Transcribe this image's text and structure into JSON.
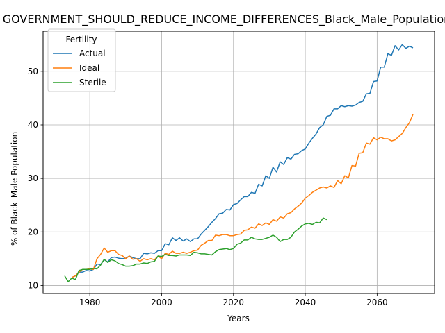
{
  "chart_data": {
    "type": "line",
    "title": "GOVERNMENT_SHOULD_REDUCE_INCOME_DIFFERENCES_Black_Male_Population_",
    "xlabel": "Years",
    "ylabel": "% of Black_Male Population",
    "xlim": [
      1967,
      2076
    ],
    "ylim": [
      8.5,
      57.5
    ],
    "xticks": [
      1980,
      2000,
      2020,
      2040,
      2060
    ],
    "yticks": [
      10,
      20,
      30,
      40,
      50
    ],
    "grid": true,
    "legend": {
      "title": "Fertility",
      "placement": "top-left"
    },
    "series": [
      {
        "name": "Actual",
        "color": "#1f77b4",
        "points": [
          [
            1975,
            11.5
          ],
          [
            1976,
            11.8
          ],
          [
            1977,
            12.5
          ],
          [
            1978,
            12.5
          ],
          [
            1979,
            12.8
          ],
          [
            1980,
            12.7
          ],
          [
            1981,
            13.0
          ],
          [
            1982,
            14.0
          ],
          [
            1983,
            13.9
          ],
          [
            1984,
            14.8
          ],
          [
            1985,
            14.4
          ],
          [
            1986,
            15.2
          ],
          [
            1987,
            15.3
          ],
          [
            1988,
            15.1
          ],
          [
            1989,
            15.0
          ],
          [
            1990,
            15.1
          ],
          [
            1991,
            15.5
          ],
          [
            1992,
            15.2
          ],
          [
            1993,
            15.0
          ],
          [
            1994,
            15.0
          ],
          [
            1995,
            16.0
          ],
          [
            1996,
            15.9
          ],
          [
            1997,
            16.1
          ],
          [
            1998,
            16.0
          ],
          [
            1999,
            16.5
          ],
          [
            2000,
            16.5
          ],
          [
            2001,
            17.8
          ],
          [
            2002,
            17.6
          ],
          [
            2003,
            18.9
          ],
          [
            2004,
            18.4
          ],
          [
            2005,
            18.9
          ],
          [
            2006,
            18.3
          ],
          [
            2007,
            18.7
          ],
          [
            2008,
            18.2
          ],
          [
            2009,
            18.7
          ],
          [
            2010,
            18.7
          ],
          [
            2011,
            19.6
          ],
          [
            2012,
            20.3
          ],
          [
            2013,
            21.0
          ],
          [
            2014,
            21.8
          ],
          [
            2015,
            22.5
          ],
          [
            2016,
            23.4
          ],
          [
            2017,
            23.5
          ],
          [
            2018,
            24.2
          ],
          [
            2019,
            24.1
          ],
          [
            2020,
            25.1
          ],
          [
            2021,
            25.3
          ],
          [
            2022,
            26.0
          ],
          [
            2023,
            26.6
          ],
          [
            2024,
            26.6
          ],
          [
            2025,
            27.4
          ],
          [
            2026,
            27.2
          ],
          [
            2027,
            28.9
          ],
          [
            2028,
            28.6
          ],
          [
            2029,
            30.5
          ],
          [
            2030,
            30.0
          ],
          [
            2031,
            32.1
          ],
          [
            2032,
            31.2
          ],
          [
            2033,
            33.1
          ],
          [
            2034,
            32.6
          ],
          [
            2035,
            33.9
          ],
          [
            2036,
            33.6
          ],
          [
            2037,
            34.5
          ],
          [
            2038,
            34.6
          ],
          [
            2039,
            35.2
          ],
          [
            2040,
            35.5
          ],
          [
            2041,
            36.6
          ],
          [
            2042,
            37.5
          ],
          [
            2043,
            38.3
          ],
          [
            2044,
            39.5
          ],
          [
            2045,
            40.0
          ],
          [
            2046,
            41.6
          ],
          [
            2047,
            41.8
          ],
          [
            2048,
            43.0
          ],
          [
            2049,
            43.0
          ],
          [
            2050,
            43.6
          ],
          [
            2051,
            43.4
          ],
          [
            2052,
            43.6
          ],
          [
            2053,
            43.5
          ],
          [
            2054,
            43.7
          ],
          [
            2055,
            44.2
          ],
          [
            2056,
            44.4
          ],
          [
            2057,
            45.8
          ],
          [
            2058,
            45.9
          ],
          [
            2059,
            48.1
          ],
          [
            2060,
            48.2
          ],
          [
            2061,
            50.8
          ],
          [
            2062,
            50.8
          ],
          [
            2063,
            53.3
          ],
          [
            2064,
            53.0
          ],
          [
            2065,
            54.8
          ],
          [
            2066,
            54.0
          ],
          [
            2067,
            55.0
          ],
          [
            2068,
            54.3
          ],
          [
            2069,
            54.7
          ],
          [
            2070,
            54.4
          ]
        ]
      },
      {
        "name": "Ideal",
        "color": "#ff7f0e",
        "points": [
          [
            1975,
            11.5
          ],
          [
            1976,
            11.8
          ],
          [
            1977,
            12.5
          ],
          [
            1978,
            13.0
          ],
          [
            1979,
            13.0
          ],
          [
            1980,
            13.1
          ],
          [
            1981,
            13.0
          ],
          [
            1982,
            15.0
          ],
          [
            1983,
            15.8
          ],
          [
            1984,
            17.0
          ],
          [
            1985,
            16.2
          ],
          [
            1986,
            16.5
          ],
          [
            1987,
            16.5
          ],
          [
            1988,
            15.8
          ],
          [
            1989,
            15.6
          ],
          [
            1990,
            15.0
          ],
          [
            1991,
            15.5
          ],
          [
            1992,
            14.9
          ],
          [
            1993,
            15.0
          ],
          [
            1994,
            14.5
          ],
          [
            1995,
            15.0
          ],
          [
            1996,
            14.8
          ],
          [
            1997,
            15.0
          ],
          [
            1998,
            14.8
          ],
          [
            1999,
            15.5
          ],
          [
            2000,
            15.0
          ],
          [
            2001,
            16.0
          ],
          [
            2002,
            15.8
          ],
          [
            2003,
            16.4
          ],
          [
            2004,
            16.0
          ],
          [
            2005,
            16.0
          ],
          [
            2006,
            16.2
          ],
          [
            2007,
            16.0
          ],
          [
            2008,
            16.2
          ],
          [
            2009,
            16.5
          ],
          [
            2010,
            16.6
          ],
          [
            2011,
            17.5
          ],
          [
            2012,
            17.9
          ],
          [
            2013,
            18.4
          ],
          [
            2014,
            18.4
          ],
          [
            2015,
            19.4
          ],
          [
            2016,
            19.3
          ],
          [
            2017,
            19.5
          ],
          [
            2018,
            19.5
          ],
          [
            2019,
            19.3
          ],
          [
            2020,
            19.3
          ],
          [
            2021,
            19.5
          ],
          [
            2022,
            19.6
          ],
          [
            2023,
            20.3
          ],
          [
            2024,
            20.4
          ],
          [
            2025,
            20.9
          ],
          [
            2026,
            20.7
          ],
          [
            2027,
            21.5
          ],
          [
            2028,
            21.2
          ],
          [
            2029,
            21.7
          ],
          [
            2030,
            21.4
          ],
          [
            2031,
            22.3
          ],
          [
            2032,
            22.0
          ],
          [
            2033,
            22.8
          ],
          [
            2034,
            22.6
          ],
          [
            2035,
            23.4
          ],
          [
            2036,
            23.6
          ],
          [
            2037,
            24.3
          ],
          [
            2038,
            24.8
          ],
          [
            2039,
            25.4
          ],
          [
            2040,
            26.3
          ],
          [
            2041,
            26.8
          ],
          [
            2042,
            27.4
          ],
          [
            2043,
            27.8
          ],
          [
            2044,
            28.2
          ],
          [
            2045,
            28.4
          ],
          [
            2046,
            28.2
          ],
          [
            2047,
            28.6
          ],
          [
            2048,
            28.3
          ],
          [
            2049,
            29.6
          ],
          [
            2050,
            29.0
          ],
          [
            2051,
            30.5
          ],
          [
            2052,
            30.1
          ],
          [
            2053,
            32.4
          ],
          [
            2054,
            32.3
          ],
          [
            2055,
            34.7
          ],
          [
            2056,
            34.8
          ],
          [
            2057,
            36.6
          ],
          [
            2058,
            36.4
          ],
          [
            2059,
            37.6
          ],
          [
            2060,
            37.2
          ],
          [
            2061,
            37.7
          ],
          [
            2062,
            37.4
          ],
          [
            2063,
            37.4
          ],
          [
            2064,
            37.0
          ],
          [
            2065,
            37.2
          ],
          [
            2066,
            37.8
          ],
          [
            2067,
            38.4
          ],
          [
            2068,
            39.5
          ],
          [
            2069,
            40.4
          ],
          [
            2070,
            42.0
          ]
        ]
      },
      {
        "name": "Sterile",
        "color": "#2ca02c",
        "points": [
          [
            1973,
            11.8
          ],
          [
            1974,
            10.7
          ],
          [
            1975,
            11.4
          ],
          [
            1976,
            11.1
          ],
          [
            1977,
            12.8
          ],
          [
            1978,
            13.0
          ],
          [
            1979,
            13.0
          ],
          [
            1980,
            13.0
          ],
          [
            1981,
            13.2
          ],
          [
            1982,
            13.1
          ],
          [
            1983,
            13.8
          ],
          [
            1984,
            14.9
          ],
          [
            1985,
            14.3
          ],
          [
            1986,
            14.8
          ],
          [
            1987,
            14.6
          ],
          [
            1988,
            14.1
          ],
          [
            1989,
            13.9
          ],
          [
            1990,
            13.6
          ],
          [
            1991,
            13.6
          ],
          [
            1992,
            13.7
          ],
          [
            1993,
            14.0
          ],
          [
            1994,
            14.0
          ],
          [
            1995,
            14.2
          ],
          [
            1996,
            14.1
          ],
          [
            1997,
            14.4
          ],
          [
            1998,
            14.5
          ],
          [
            1999,
            15.5
          ],
          [
            2000,
            15.4
          ],
          [
            2001,
            15.8
          ],
          [
            2002,
            15.6
          ],
          [
            2003,
            15.6
          ],
          [
            2004,
            15.5
          ],
          [
            2005,
            15.7
          ],
          [
            2006,
            15.7
          ],
          [
            2007,
            15.7
          ],
          [
            2008,
            15.6
          ],
          [
            2009,
            16.2
          ],
          [
            2010,
            16.1
          ],
          [
            2011,
            15.9
          ],
          [
            2012,
            15.9
          ],
          [
            2013,
            15.8
          ],
          [
            2014,
            15.7
          ],
          [
            2015,
            16.3
          ],
          [
            2016,
            16.7
          ],
          [
            2017,
            16.8
          ],
          [
            2018,
            16.9
          ],
          [
            2019,
            16.7
          ],
          [
            2020,
            16.9
          ],
          [
            2021,
            17.7
          ],
          [
            2022,
            17.9
          ],
          [
            2023,
            18.5
          ],
          [
            2024,
            18.5
          ],
          [
            2025,
            19.0
          ],
          [
            2026,
            18.7
          ],
          [
            2027,
            18.6
          ],
          [
            2028,
            18.6
          ],
          [
            2029,
            18.8
          ],
          [
            2030,
            19.0
          ],
          [
            2031,
            19.4
          ],
          [
            2032,
            19.0
          ],
          [
            2033,
            18.2
          ],
          [
            2034,
            18.6
          ],
          [
            2035,
            18.6
          ],
          [
            2036,
            19.0
          ],
          [
            2037,
            20.0
          ],
          [
            2038,
            20.5
          ],
          [
            2039,
            21.1
          ],
          [
            2040,
            21.5
          ],
          [
            2041,
            21.6
          ],
          [
            2042,
            21.4
          ],
          [
            2043,
            21.8
          ],
          [
            2044,
            21.7
          ],
          [
            2045,
            22.6
          ],
          [
            2046,
            22.3
          ]
        ]
      }
    ]
  }
}
